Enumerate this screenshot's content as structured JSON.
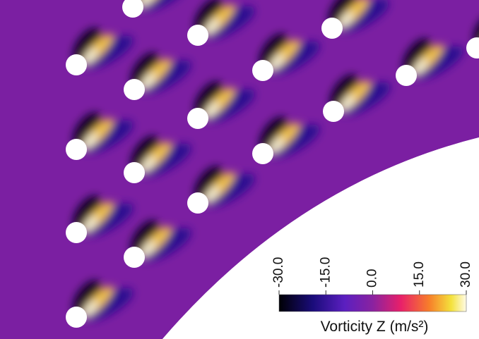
{
  "colorbar": {
    "title": "Vorticity Z (m/s²)",
    "range": [
      -30,
      30
    ],
    "ticks": [
      {
        "value": -30,
        "label": "-30.0"
      },
      {
        "value": -15,
        "label": "-15.0"
      },
      {
        "value": 0,
        "label": "0.0"
      },
      {
        "value": 15,
        "label": "15.0"
      },
      {
        "value": 30,
        "label": "30.0"
      }
    ]
  }
}
